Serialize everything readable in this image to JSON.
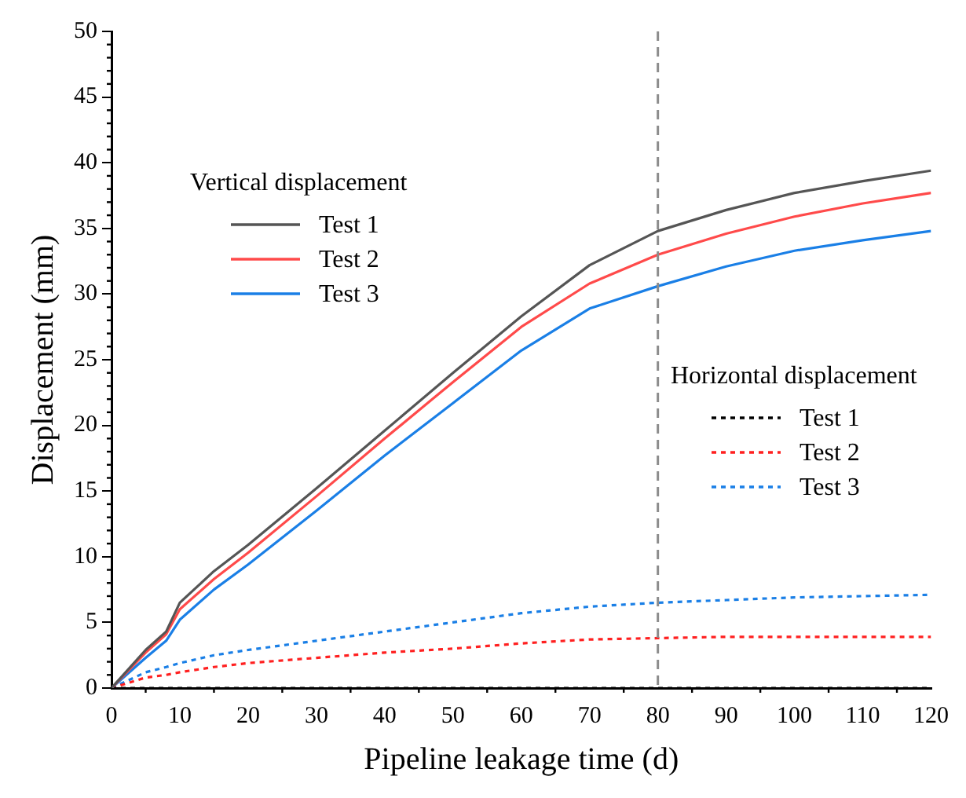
{
  "chart_data": {
    "type": "line",
    "xlabel": "Pipeline leakage time (d)",
    "ylabel": "Displacement (mm)",
    "xlim": [
      0,
      120
    ],
    "xticks": [
      0,
      10,
      20,
      30,
      40,
      50,
      60,
      70,
      80,
      90,
      100,
      110,
      120
    ],
    "ylim": [
      0,
      50
    ],
    "yticks": [
      0,
      5,
      10,
      15,
      20,
      25,
      30,
      35,
      40,
      45,
      50
    ],
    "grid": false,
    "legend": "top left",
    "marker": "none",
    "annotations": [
      "Vertical displacement",
      "Horizontal displacement"
    ],
    "ref_lines": [
      {
        "axis": "x",
        "value": 80,
        "color": "#8c8c8c",
        "line_style": "dashed"
      }
    ],
    "x": [
      0,
      5,
      8,
      10,
      15,
      20,
      30,
      40,
      50,
      60,
      70,
      80,
      90,
      100,
      110,
      120
    ],
    "series": [
      {
        "name": "Test 1",
        "color": "#555555",
        "line_style": "solid",
        "values": [
          0,
          2.9,
          4.3,
          6.5,
          8.9,
          10.9,
          15.2,
          19.6,
          24,
          28.3,
          32.2,
          34.8,
          36.4,
          37.7,
          38.6,
          39.4
        ]
      },
      {
        "name": "Test 2",
        "color": "#ff4a4a",
        "line_style": "solid",
        "values": [
          0,
          2.7,
          4.1,
          6,
          8.3,
          10.3,
          14.6,
          19,
          23.3,
          27.5,
          30.8,
          33,
          34.6,
          35.9,
          36.9,
          37.7
        ]
      },
      {
        "name": "Test 3",
        "color": "#1a7fe6",
        "line_style": "solid",
        "values": [
          0,
          2.3,
          3.6,
          5.2,
          7.5,
          9.4,
          13.5,
          17.7,
          21.7,
          25.7,
          28.9,
          30.6,
          32.1,
          33.3,
          34.1,
          34.8
        ]
      },
      {
        "name": "Test 1",
        "color": "#000000",
        "line_style": "dotted",
        "values": [
          0,
          0,
          0,
          0,
          0,
          0,
          0,
          0,
          0,
          0,
          0,
          0,
          0,
          0,
          0,
          0
        ]
      },
      {
        "name": "Test 2",
        "color": "#ff2020",
        "line_style": "dotted",
        "values": [
          0,
          0.8,
          1.0,
          1.2,
          1.6,
          1.9,
          2.3,
          2.7,
          3.0,
          3.4,
          3.7,
          3.8,
          3.9,
          3.9,
          3.9,
          3.9
        ]
      },
      {
        "name": "Test 3",
        "color": "#1a7fe6",
        "line_style": "dotted",
        "values": [
          0,
          1.2,
          1.6,
          1.9,
          2.5,
          2.9,
          3.6,
          4.3,
          5.0,
          5.7,
          6.2,
          6.5,
          6.7,
          6.9,
          7.0,
          7.1
        ]
      }
    ]
  }
}
